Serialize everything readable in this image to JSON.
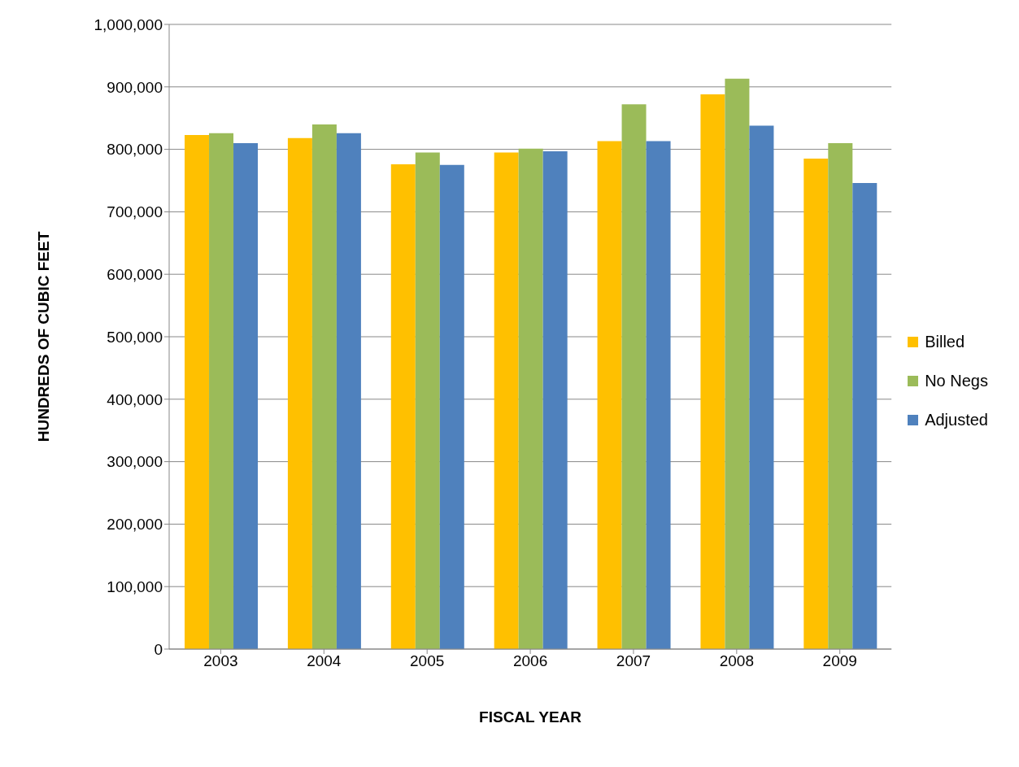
{
  "chart_data": {
    "type": "bar",
    "xlabel": "FISCAL YEAR",
    "ylabel": "HUNDREDS OF CUBIC FEET",
    "categories": [
      "2003",
      "2004",
      "2005",
      "2006",
      "2007",
      "2008",
      "2009"
    ],
    "series": [
      {
        "name": "Billed",
        "color": "#ffc000",
        "values": [
          823000,
          818000,
          776000,
          795000,
          813000,
          888000,
          785000
        ]
      },
      {
        "name": "No Negs",
        "color": "#9bbb59",
        "values": [
          826000,
          840000,
          795000,
          801000,
          872000,
          913000,
          810000
        ]
      },
      {
        "name": "Adjusted",
        "color": "#4f81bd",
        "values": [
          810000,
          826000,
          775000,
          797000,
          813000,
          838000,
          746000
        ]
      }
    ],
    "ylim": [
      0,
      1000000
    ],
    "yticks": [
      0,
      {
        "value": 100000,
        "label": "100,000"
      },
      {
        "value": 200000,
        "label": "200,000"
      },
      {
        "value": 300000,
        "label": "300,000"
      },
      {
        "value": 400000,
        "label": "400,000"
      },
      {
        "value": 500000,
        "label": "500,000"
      },
      {
        "value": 600000,
        "label": "600,000"
      },
      {
        "value": 700000,
        "label": "700,000"
      },
      {
        "value": 800000,
        "label": "800,000"
      },
      {
        "value": 900000,
        "label": "900,000"
      },
      {
        "value": 1000000,
        "label": "1,000,000"
      }
    ],
    "grid": "y",
    "legend": "right"
  }
}
